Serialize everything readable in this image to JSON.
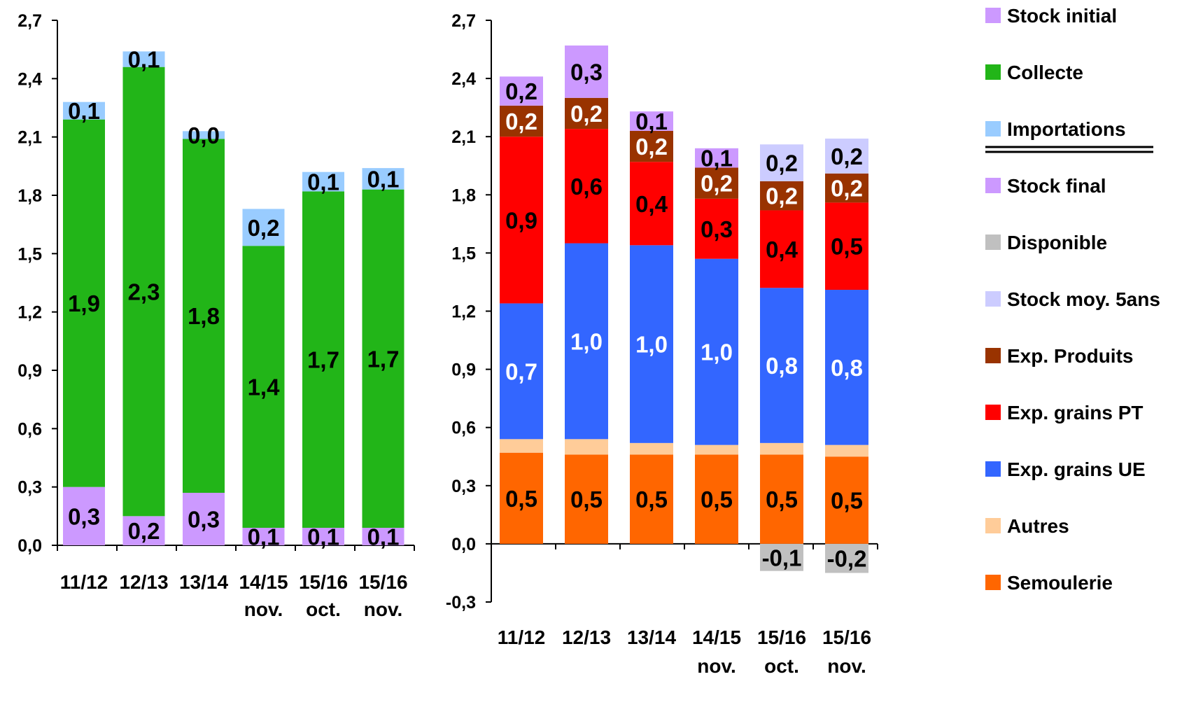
{
  "chart_data": [
    {
      "type": "bar",
      "stacked": true,
      "categories": [
        [
          "11/12"
        ],
        [
          "12/13"
        ],
        [
          "13/14"
        ],
        [
          "14/15",
          "nov."
        ],
        [
          "15/16",
          "oct."
        ],
        [
          "15/16",
          "nov."
        ]
      ],
      "ylim": [
        0,
        2.7
      ],
      "yticks": [
        "0,0",
        "0,3",
        "0,6",
        "0,9",
        "1,2",
        "1,5",
        "1,8",
        "2,1",
        "2,4",
        "2,7"
      ],
      "series": [
        {
          "name": "Stock initial",
          "color": "#cc99ff",
          "values": [
            0.3,
            0.15,
            0.27,
            0.09,
            0.09,
            0.09
          ],
          "labels": [
            "0,3",
            "0,2",
            "0,3",
            "0,1",
            "0,1",
            "0,1"
          ],
          "label_color": "#000000"
        },
        {
          "name": "Collecte",
          "color": "#22b518",
          "values": [
            1.89,
            2.31,
            1.82,
            1.45,
            1.73,
            1.74
          ],
          "labels": [
            "1,9",
            "2,3",
            "1,8",
            "1,4",
            "1,7",
            "1,7"
          ],
          "label_color": "#000000"
        },
        {
          "name": "Importations",
          "color": "#99ccff",
          "values": [
            0.09,
            0.08,
            0.04,
            0.19,
            0.1,
            0.11
          ],
          "labels": [
            "0,1",
            "0,1",
            "0,0",
            "0,2",
            "0,1",
            "0,1"
          ],
          "label_color": "#000000"
        }
      ]
    },
    {
      "type": "bar",
      "stacked": true,
      "categories": [
        [
          "11/12"
        ],
        [
          "12/13"
        ],
        [
          "13/14"
        ],
        [
          "14/15",
          "nov."
        ],
        [
          "15/16",
          "oct."
        ],
        [
          "15/16",
          "nov."
        ]
      ],
      "ylim": [
        -0.3,
        2.7
      ],
      "yticks": [
        "-0,3",
        "0,0",
        "0,3",
        "0,6",
        "0,9",
        "1,2",
        "1,5",
        "1,8",
        "2,1",
        "2,4",
        "2,7"
      ],
      "series": [
        {
          "name": "Semoulerie",
          "color": "#ff6600",
          "values": [
            0.47,
            0.46,
            0.46,
            0.46,
            0.46,
            0.45
          ],
          "labels": [
            "0,5",
            "0,5",
            "0,5",
            "0,5",
            "0,5",
            "0,5"
          ],
          "label_color": "#000000"
        },
        {
          "name": "Autres",
          "color": "#ffcc99",
          "values": [
            0.07,
            0.08,
            0.06,
            0.05,
            0.06,
            0.06
          ],
          "labels": [
            "",
            "",
            "",
            "",
            "",
            ""
          ],
          "label_color": "#000000"
        },
        {
          "name": "Exp. grains UE",
          "color": "#3366ff",
          "values": [
            0.7,
            1.01,
            1.02,
            0.96,
            0.8,
            0.8
          ],
          "labels": [
            "0,7",
            "1,0",
            "1,0",
            "1,0",
            "0,8",
            "0,8"
          ],
          "label_color": "#ffffff"
        },
        {
          "name": "Exp. grains PT",
          "color": "#ff0000",
          "values": [
            0.86,
            0.59,
            0.43,
            0.31,
            0.4,
            0.45
          ],
          "labels": [
            "0,9",
            "0,6",
            "0,4",
            "0,3",
            "0,4",
            "0,5"
          ],
          "label_color": "#000000"
        },
        {
          "name": "Exp. Produits",
          "color": "#993300",
          "values": [
            0.16,
            0.16,
            0.16,
            0.16,
            0.15,
            0.15
          ],
          "labels": [
            "0,2",
            "0,2",
            "0,2",
            "0,2",
            "0,2",
            "0,2"
          ],
          "label_color": "#ffffff"
        },
        {
          "name": "Stock final",
          "color": "#cc99ff",
          "values": [
            0.15,
            0.27,
            0.1,
            0.1,
            0,
            0
          ],
          "labels": [
            "0,2",
            "0,3",
            "0,1",
            "0,1",
            "",
            ""
          ],
          "label_color": "#000000"
        },
        {
          "name": "Stock moy. 5ans",
          "color": "#ccccff",
          "values": [
            0,
            0,
            0,
            0,
            0.19,
            0.18
          ],
          "labels": [
            "",
            "",
            "",
            "",
            "0,2",
            "0,2"
          ],
          "label_color": "#000000"
        },
        {
          "name": "Disponible",
          "color": "#c0c0c0",
          "values": [
            0,
            0,
            0,
            0,
            -0.14,
            -0.15
          ],
          "labels": [
            "",
            "",
            "",
            "",
            "-0,1",
            "-0,2"
          ],
          "label_color": "#000000"
        }
      ]
    }
  ],
  "legend": {
    "placement": "right",
    "items": [
      {
        "name": "Stock initial",
        "color": "#cc99ff"
      },
      {
        "name": "Collecte",
        "color": "#22b518"
      },
      {
        "name": "Importations",
        "color": "#99ccff"
      },
      {
        "name": "Stock final",
        "color": "#cc99ff"
      },
      {
        "name": "Disponible",
        "color": "#c0c0c0"
      },
      {
        "name": "Stock moy. 5ans",
        "color": "#ccccff"
      },
      {
        "name": "Exp. Produits",
        "color": "#993300"
      },
      {
        "name": "Exp. grains PT",
        "color": "#ff0000"
      },
      {
        "name": "Exp. grains UE",
        "color": "#3366ff"
      },
      {
        "name": "Autres",
        "color": "#ffcc99"
      },
      {
        "name": "Semoulerie",
        "color": "#ff6600"
      }
    ]
  }
}
